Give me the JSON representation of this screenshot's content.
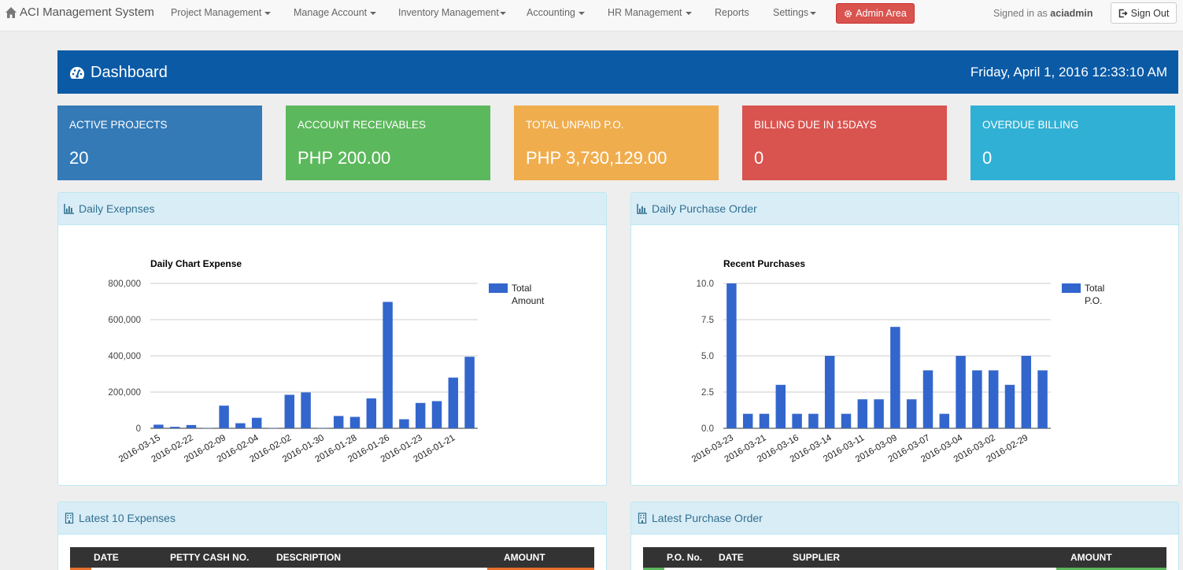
{
  "nav": {
    "brand": "ACI Management System",
    "items": [
      "Project Management",
      "Manage Account",
      "Inventory Management",
      "Accounting",
      "HR Management",
      "Reports",
      "Settings"
    ],
    "admin_label": "Admin Area",
    "signed_prefix": "Signed in as",
    "user": "aciadmin",
    "signout_label": "Sign Out"
  },
  "header": {
    "title": "Dashboard",
    "datetime": "Friday, April 1, 2016 12:33:10 AM"
  },
  "stats": [
    {
      "label": "ACTIVE PROJECTS",
      "value": "20",
      "color": "#337ab7"
    },
    {
      "label": "ACCOUNT RECEIVABLES",
      "value": "PHP 200.00",
      "color": "#5cb85c"
    },
    {
      "label": "TOTAL UNPAID P.O.",
      "value": "PHP 3,730,129.00",
      "color": "#f0ad4e"
    },
    {
      "label": "BILLING DUE IN 15DAYS",
      "value": "0",
      "color": "#d9534f"
    },
    {
      "label": "OVERDUE BILLING",
      "value": "0",
      "color": "#31b0d5"
    }
  ],
  "panels": {
    "expenses_chart": "Daily Exepnses",
    "po_chart": "Daily Purchase Order",
    "latest_expenses": "Latest 10 Expenses",
    "latest_po": "Latest Purchase Order"
  },
  "tables": {
    "expenses": {
      "headers": [
        "DATE",
        "PETTY CASH NO.",
        "DESCRIPTION",
        "AMOUNT"
      ],
      "accent": "#e8702a"
    },
    "po": {
      "headers": [
        "P.O. No.",
        "DATE",
        "SUPPLIER",
        "AMOUNT"
      ],
      "accent": "#5cb85c"
    }
  },
  "chart_data": [
    {
      "type": "bar",
      "title": "Daily Chart Expense",
      "series": [
        {
          "name": "Total Amount",
          "color": "#3366cc",
          "values": [
            20000,
            8000,
            18000,
            2000,
            125000,
            28000,
            58000,
            2000,
            185000,
            198000,
            2000,
            68000,
            63000,
            165000,
            698000,
            50000,
            140000,
            150000,
            280000,
            395000
          ]
        }
      ],
      "categories": [
        "2016-03-15",
        "",
        "2016-02-22",
        "",
        "2016-02-09",
        "",
        "2016-02-04",
        "",
        "2016-02-02",
        "",
        "2016-01-30",
        "",
        "2016-01-28",
        "",
        "2016-01-26",
        "",
        "2016-01-23",
        "",
        "2016-01-21",
        ""
      ],
      "ylim": [
        0,
        800000
      ],
      "yticks": [
        "0",
        "200,000",
        "400,000",
        "600,000",
        "800,000"
      ],
      "grid": true,
      "legend": "right"
    },
    {
      "type": "bar",
      "title": "Recent Purchases",
      "series": [
        {
          "name": "Total P.O.",
          "color": "#3366cc",
          "values": [
            10,
            1,
            1,
            3,
            1,
            1,
            5,
            1,
            2,
            2,
            7,
            2,
            4,
            1,
            5,
            4,
            4,
            3,
            5,
            4
          ]
        }
      ],
      "categories": [
        "2016-03-23",
        "",
        "2016-03-21",
        "",
        "2016-03-16",
        "",
        "2016-03-14",
        "",
        "2016-03-11",
        "",
        "2016-03-09",
        "",
        "2016-03-07",
        "",
        "2016-03-04",
        "",
        "2016-03-02",
        "",
        "2016-02-29",
        ""
      ],
      "ylim": [
        0,
        10
      ],
      "yticks": [
        "0.0",
        "2.5",
        "5.0",
        "7.5",
        "10.0"
      ],
      "grid": true,
      "legend": "right"
    }
  ]
}
